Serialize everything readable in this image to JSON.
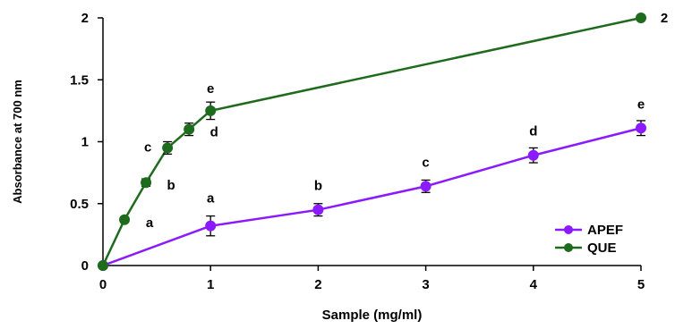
{
  "chart_data": {
    "type": "line",
    "xlabel": "Sample (mg/ml)",
    "ylabel": "Absorbance at 700 nm",
    "xlim": [
      0,
      5
    ],
    "ylim": [
      0,
      2
    ],
    "x_ticks": [
      "0",
      "1",
      "2",
      "3",
      "4",
      "5"
    ],
    "y_ticks": [
      "0",
      "0.5",
      "1",
      "1.5",
      "2"
    ],
    "grid": false,
    "legend_position": "bottom-right",
    "series": [
      {
        "name": "APEF",
        "color": "#8b1aff",
        "points": [
          {
            "x": 0,
            "y": 0,
            "err": 0,
            "label": ""
          },
          {
            "x": 1,
            "y": 0.32,
            "err": 0.08,
            "label": "a"
          },
          {
            "x": 2,
            "y": 0.45,
            "err": 0.05,
            "label": "b"
          },
          {
            "x": 3,
            "y": 0.64,
            "err": 0.05,
            "label": "c"
          },
          {
            "x": 4,
            "y": 0.89,
            "err": 0.06,
            "label": "d"
          },
          {
            "x": 5,
            "y": 1.11,
            "err": 0.06,
            "label": "e"
          }
        ]
      },
      {
        "name": "QUE",
        "color": "#1e6b1e",
        "points": [
          {
            "x": 0,
            "y": 0,
            "err": 0,
            "label": ""
          },
          {
            "x": 0.2,
            "y": 0.37,
            "err": 0.02,
            "label": "a"
          },
          {
            "x": 0.4,
            "y": 0.67,
            "err": 0.03,
            "label": "b"
          },
          {
            "x": 0.6,
            "y": 0.95,
            "err": 0.05,
            "label": "c"
          },
          {
            "x": 0.8,
            "y": 1.1,
            "err": 0.05,
            "label": "d"
          },
          {
            "x": 1,
            "y": 1.25,
            "err": 0.07,
            "label": "e"
          },
          {
            "x": 5,
            "y": 2.0,
            "err": 0.0,
            "label": "2"
          }
        ]
      }
    ]
  }
}
